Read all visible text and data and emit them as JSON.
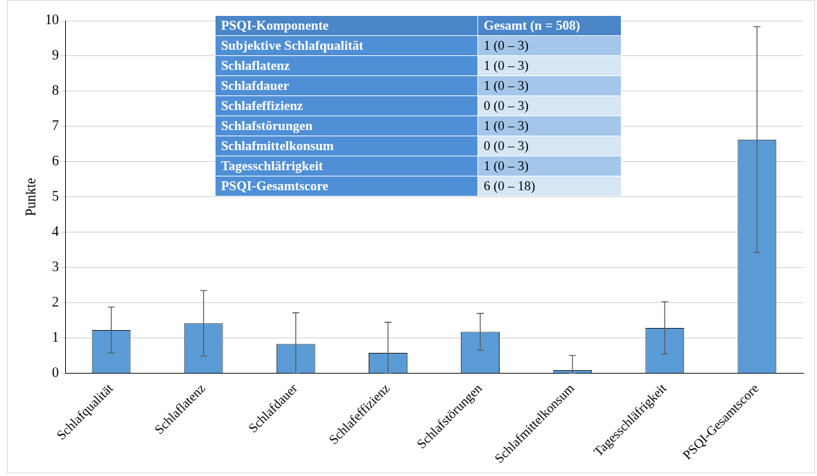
{
  "chart_data": {
    "type": "bar",
    "ylabel": "Punkte",
    "categories": [
      "Schlafqualität",
      "Schlaflatenz",
      "Schlafdauer",
      "Schlafeffizienz",
      "Schlafstörungen",
      "Schlafmittelkonsum",
      "Tagesschläfrigkeit",
      "PSQI-Gesamtscore"
    ],
    "values": [
      1.23,
      1.42,
      0.83,
      0.58,
      1.18,
      0.09,
      1.29,
      6.63
    ],
    "errors": [
      0.65,
      0.93,
      [
        0,
        1.72
      ],
      [
        0,
        1.45
      ],
      0.52,
      [
        0,
        0.51
      ],
      0.74,
      3.2
    ],
    "color": "#5b9bd5",
    "ylim": [
      0,
      10
    ],
    "yticks": [
      0,
      1,
      2,
      3,
      4,
      5,
      6,
      7,
      8,
      9,
      10
    ],
    "grid": "y",
    "annotations": [
      "PSQI-Komponente",
      "Gesamt (n = 508)",
      "Subjektive Schlafqualität",
      "1 (0 – 3)",
      "Schlaflatenz",
      "1 (0 – 3)",
      "Schlafdauer",
      "1 (0 – 3)",
      "Schlafeffizienz",
      "0 (0 – 3)",
      "Schlafstörungen",
      "1 (0 – 3)",
      "Schlafmittelkonsum",
      "0 (0 – 3)",
      "Tagesschläfrigkeit",
      "1 (0 – 3)",
      "PSQI-Gesamtscore",
      "6 (0 – 18)"
    ]
  }
}
